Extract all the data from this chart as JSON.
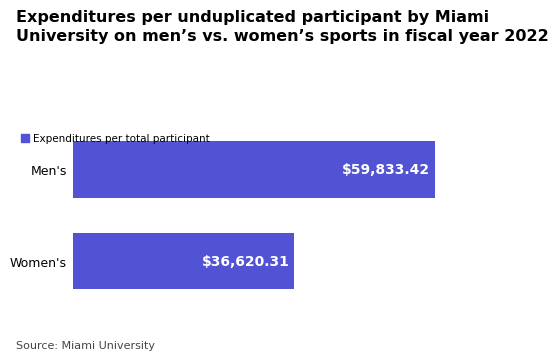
{
  "title_line1": "Expenditures per unduplicated participant by Miami",
  "title_line2": "University on men’s vs. women’s sports in fiscal year 2022",
  "categories": [
    "Men's",
    "Women's"
  ],
  "values": [
    59833.42,
    36620.31
  ],
  "bar_color": "#5252d4",
  "bar_labels": [
    "$59,833.42",
    "$36,620.31"
  ],
  "legend_label": "Expenditures per total participant",
  "source_text": "Source: Miami University",
  "xlim": [
    0,
    65000
  ],
  "title_fontsize": 11.5,
  "bar_label_fontsize": 10,
  "legend_fontsize": 7.5,
  "tick_fontsize": 9,
  "source_fontsize": 8,
  "background_color": "#ffffff",
  "text_color": "#000000",
  "bar_label_color": "#ffffff"
}
